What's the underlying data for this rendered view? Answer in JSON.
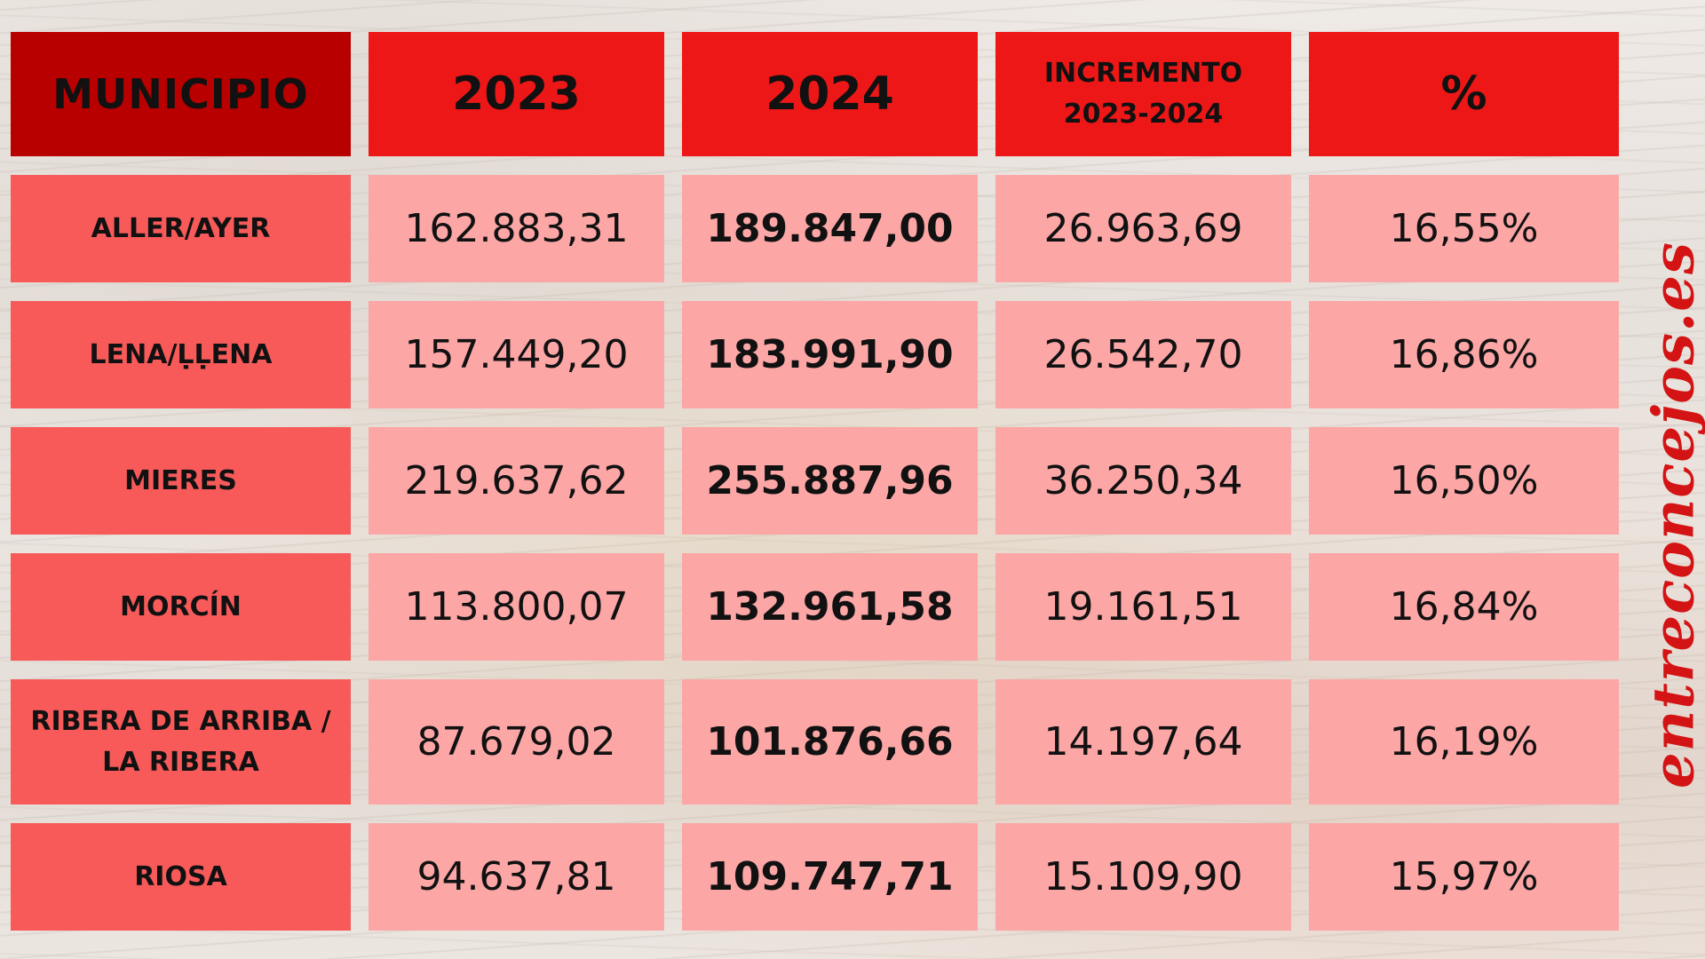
{
  "chart_data": {
    "type": "table",
    "columns": [
      "MUNICIPIO",
      "2023",
      "2024",
      "INCREMENTO 2023-2024",
      "%"
    ],
    "header": {
      "municipio": "MUNICIPIO",
      "y2023": "2023",
      "y2024": "2024",
      "incremento_line1": "INCREMENTO",
      "incremento_line2": "2023-2024",
      "percent": "%"
    },
    "rows": [
      {
        "municipio": "ALLER/AYER",
        "y2023": "162.883,31",
        "y2024": "189.847,00",
        "incremento": "26.963,69",
        "percent": "16,55%"
      },
      {
        "municipio": "LENA/ḶḶENA",
        "y2023": "157.449,20",
        "y2024": "183.991,90",
        "incremento": "26.542,70",
        "percent": "16,86%"
      },
      {
        "municipio": "MIERES",
        "y2023": "219.637,62",
        "y2024": "255.887,96",
        "incremento": "36.250,34",
        "percent": "16,50%"
      },
      {
        "municipio": "MORCÍN",
        "y2023": "113.800,07",
        "y2024": "132.961,58",
        "incremento": "19.161,51",
        "percent": "16,84%"
      },
      {
        "municipio": "RIBERA DE ARRIBA / LA RIBERA",
        "y2023": "87.679,02",
        "y2024": "101.876,66",
        "incremento": "14.197,64",
        "percent": "16,19%"
      },
      {
        "municipio": "RIOSA",
        "y2023": "94.637,81",
        "y2024": "109.747,71",
        "incremento": "15.109,90",
        "percent": "15,97%"
      }
    ]
  },
  "watermark": "entreconcejos.es",
  "colors": {
    "header_first": "#b80000",
    "header": "#ee1717",
    "municipio_cell": "#f85a5a",
    "value_cell": "#fca6a6",
    "watermark": "#d41414"
  }
}
